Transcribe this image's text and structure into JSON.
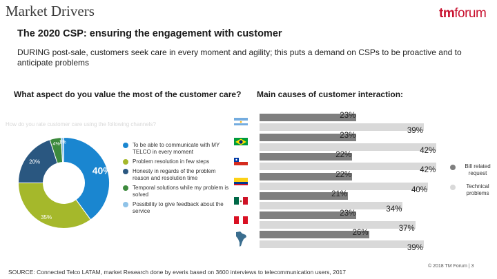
{
  "header": {
    "title": "Market Drivers",
    "logo_prefix": "tm",
    "logo_suffix": "forum",
    "subtitle": "The 2020 CSP: ensuring the engagement with customer",
    "description": "DURING post-sale, customers seek care in every moment and agility; this puts a demand on CSPs to be proactive and to anticipate problems"
  },
  "left_panel": {
    "question": "What aspect do you value the most of the customer care?",
    "faded_caption": "How do you rate customer care using the following channels?"
  },
  "right_panel": {
    "question": "Main causes of customer interaction:"
  },
  "chart_data": [
    {
      "type": "pie",
      "title": "What aspect do you value the most of the customer care?",
      "categories": [
        "To be able to communicate with MY TELCO in every moment",
        "Problem resolution in few steps",
        "Honesty in regards of the problem reason and resolution time",
        "Temporal solutions while my problem is solved",
        "Possibility to give feedback about the service"
      ],
      "values": [
        40,
        35,
        20,
        4,
        1
      ],
      "value_labels": [
        "40%",
        "35%",
        "20%",
        "4%",
        "1%"
      ],
      "colors": [
        "#1a86d0",
        "#a5b82b",
        "#2a5780",
        "#3d8a3d",
        "#8fc3e8"
      ]
    },
    {
      "type": "bar",
      "title": "Main causes of customer interaction:",
      "categories": [
        "Argentina",
        "Brazil",
        "Chile",
        "Colombia",
        "Mexico",
        "Peru",
        "Latin America"
      ],
      "series": [
        {
          "name": "Bill related request",
          "color": "#7f7f7f",
          "values": [
            23,
            23,
            22,
            22,
            21,
            23,
            26
          ]
        },
        {
          "name": "Technical problems",
          "color": "#d9d9d9",
          "values": [
            39,
            42,
            42,
            40,
            34,
            37,
            39
          ]
        }
      ],
      "xlim": [
        0,
        50
      ]
    }
  ],
  "bars_legend": [
    {
      "label": "Bill related request",
      "color": "#7f7f7f"
    },
    {
      "label": "Technical problems",
      "color": "#d9d9d9"
    }
  ],
  "footer": {
    "source": "SOURCE: Connected Telco LATAM, market Research done by everis based on 3600 interviews to telecommunication users, 2017",
    "copyright": "© 2018 TM Forum | 3"
  }
}
